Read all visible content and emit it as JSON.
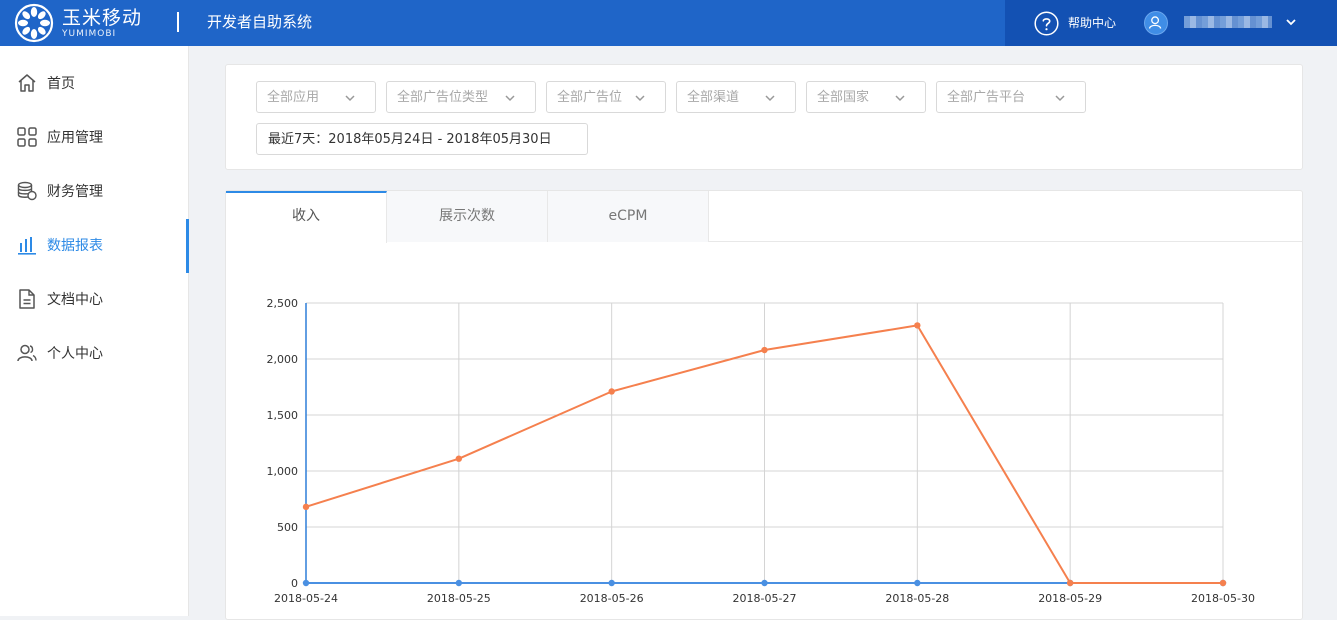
{
  "header": {
    "logo_cn": "玉米移动",
    "logo_en": "YUMIMOBI",
    "system_title": "开发者自助系统",
    "help_label": "帮助中心",
    "colors": {
      "bar": "#1f65c8",
      "right_block": "#1351b3"
    }
  },
  "sidebar": {
    "items": [
      {
        "label": "首页",
        "icon": "home-icon"
      },
      {
        "label": "应用管理",
        "icon": "apps-grid-icon"
      },
      {
        "label": "财务管理",
        "icon": "coins-icon"
      },
      {
        "label": "数据报表",
        "icon": "bar-chart-icon",
        "active": true
      },
      {
        "label": "文档中心",
        "icon": "document-icon"
      },
      {
        "label": "个人中心",
        "icon": "user-group-icon"
      }
    ],
    "active_color": "#2d8ae6"
  },
  "filters": {
    "selects": [
      {
        "label": "全部应用"
      },
      {
        "label": "全部广告位类型"
      },
      {
        "label": "全部广告位"
      },
      {
        "label": "全部渠道"
      },
      {
        "label": "全部国家"
      },
      {
        "label": "全部广告平台"
      }
    ],
    "date_range": "最近7天：2018年05月24日 - 2018年05月30日"
  },
  "tabs": [
    {
      "label": "收入",
      "active": true
    },
    {
      "label": "展示次数"
    },
    {
      "label": "eCPM"
    }
  ],
  "chart_data": {
    "type": "line",
    "categories": [
      "2018-05-24",
      "2018-05-25",
      "2018-05-26",
      "2018-05-27",
      "2018-05-28",
      "2018-05-29",
      "2018-05-30"
    ],
    "series": [
      {
        "color": "#f5804e",
        "values": [
          680,
          1110,
          1710,
          2080,
          2300,
          0,
          0
        ]
      },
      {
        "color": "#4a90e2",
        "values": [
          0,
          0,
          0,
          0,
          0,
          0,
          0
        ]
      }
    ],
    "yticks": [
      "0",
      "500",
      "1,000",
      "1,500",
      "2,000",
      "2,500"
    ],
    "ylim": [
      0,
      2500
    ],
    "grid": true
  }
}
